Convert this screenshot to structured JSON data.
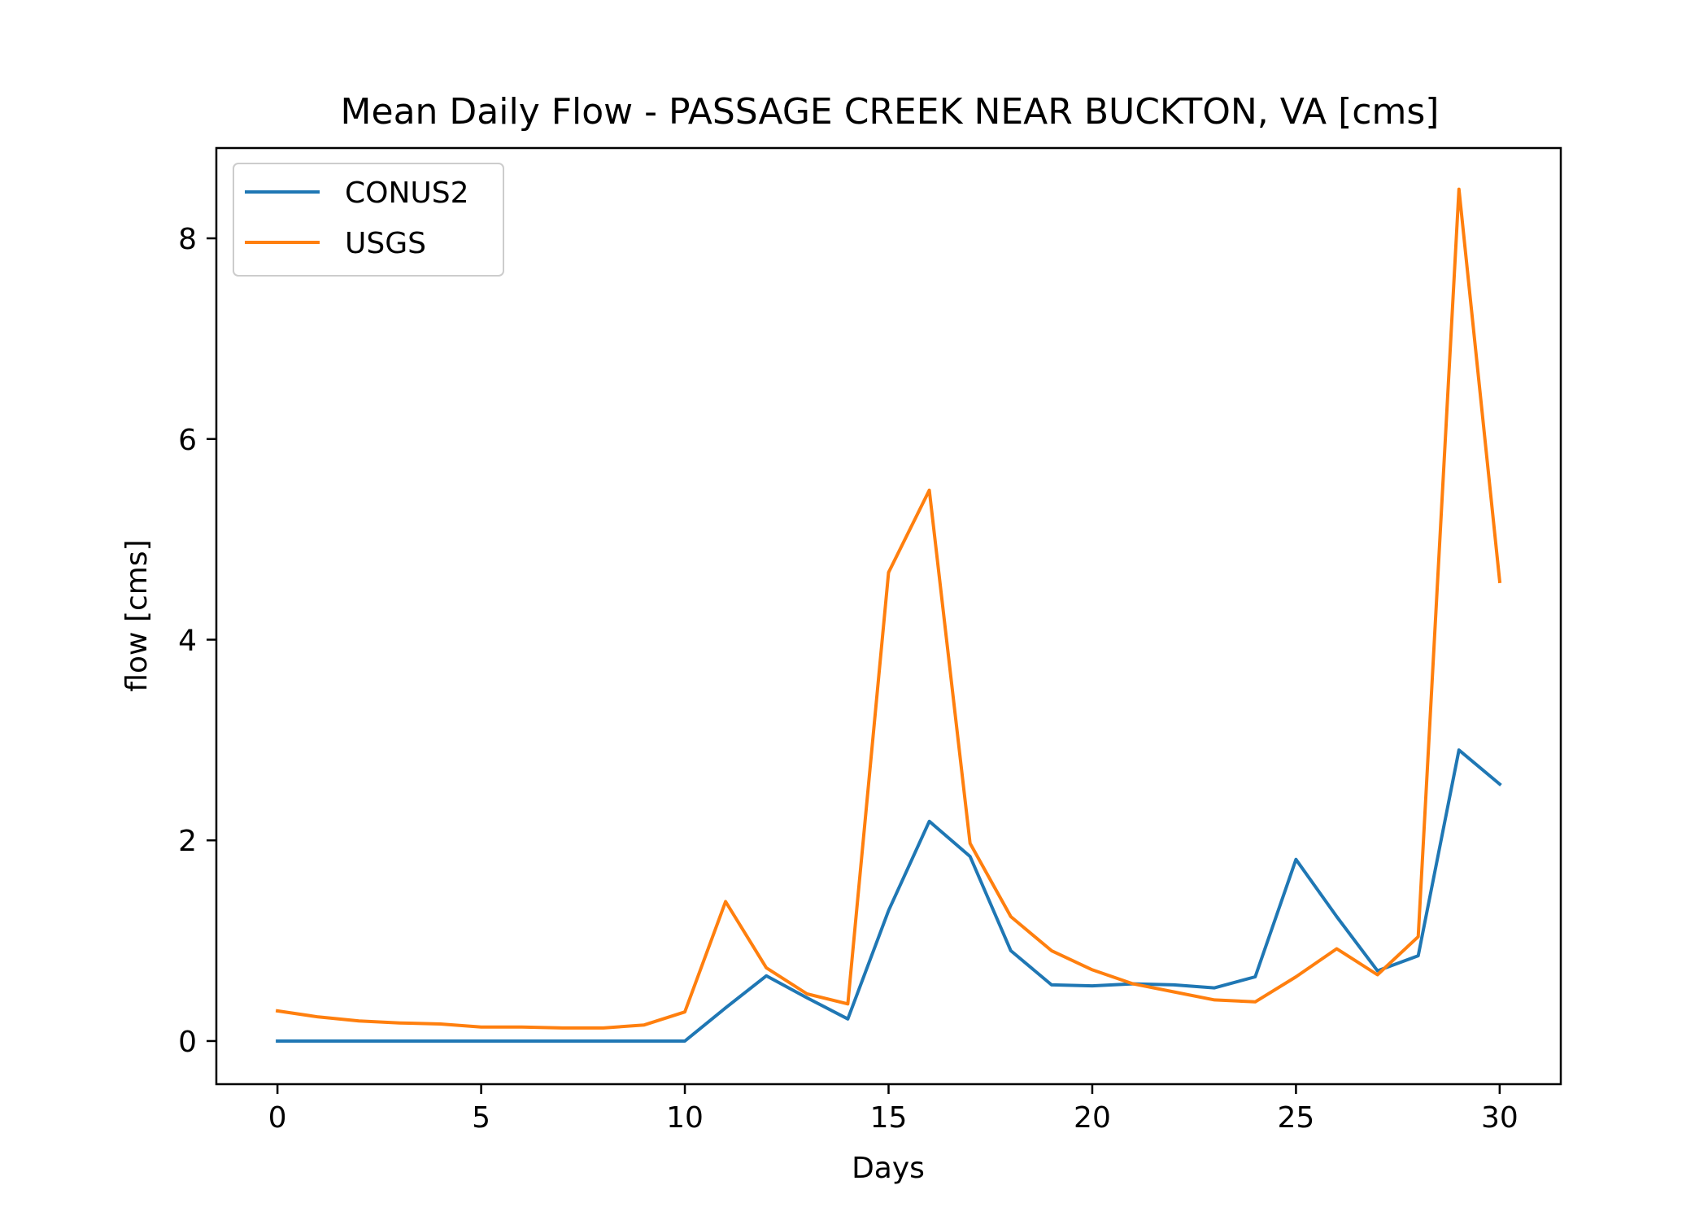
{
  "chart_data": {
    "type": "line",
    "title": "Mean Daily Flow - PASSAGE CREEK NEAR BUCKTON, VA [cms]",
    "xlabel": "Days",
    "ylabel": "flow [cms]",
    "xlim": [
      -1.5,
      31.5
    ],
    "ylim": [
      -0.43,
      8.9
    ],
    "xticks": [
      0,
      5,
      10,
      15,
      20,
      25,
      30
    ],
    "yticks": [
      0,
      2,
      4,
      6,
      8
    ],
    "grid": false,
    "legend_position": "upper-left",
    "x": [
      0,
      1,
      2,
      3,
      4,
      5,
      6,
      7,
      8,
      9,
      10,
      11,
      12,
      13,
      14,
      15,
      16,
      17,
      18,
      19,
      20,
      21,
      22,
      23,
      24,
      25,
      26,
      27,
      28,
      29,
      30
    ],
    "series": [
      {
        "name": "CONUS2",
        "color": "#1f77b4",
        "values": [
          0.0,
          0.0,
          0.0,
          0.0,
          0.0,
          0.0,
          0.0,
          0.0,
          0.0,
          0.0,
          0.0,
          0.33,
          0.65,
          0.43,
          0.22,
          1.3,
          2.19,
          1.84,
          0.9,
          0.56,
          0.55,
          0.57,
          0.56,
          0.53,
          0.64,
          1.81,
          1.24,
          0.7,
          0.85,
          2.9,
          2.56
        ]
      },
      {
        "name": "USGS",
        "color": "#ff7f0e",
        "values": [
          0.3,
          0.24,
          0.2,
          0.18,
          0.17,
          0.14,
          0.14,
          0.13,
          0.13,
          0.16,
          0.29,
          1.39,
          0.73,
          0.47,
          0.37,
          4.67,
          5.49,
          1.97,
          1.24,
          0.9,
          0.71,
          0.57,
          0.49,
          0.41,
          0.39,
          0.64,
          0.92,
          0.66,
          1.04,
          8.49,
          4.58
        ]
      }
    ]
  }
}
